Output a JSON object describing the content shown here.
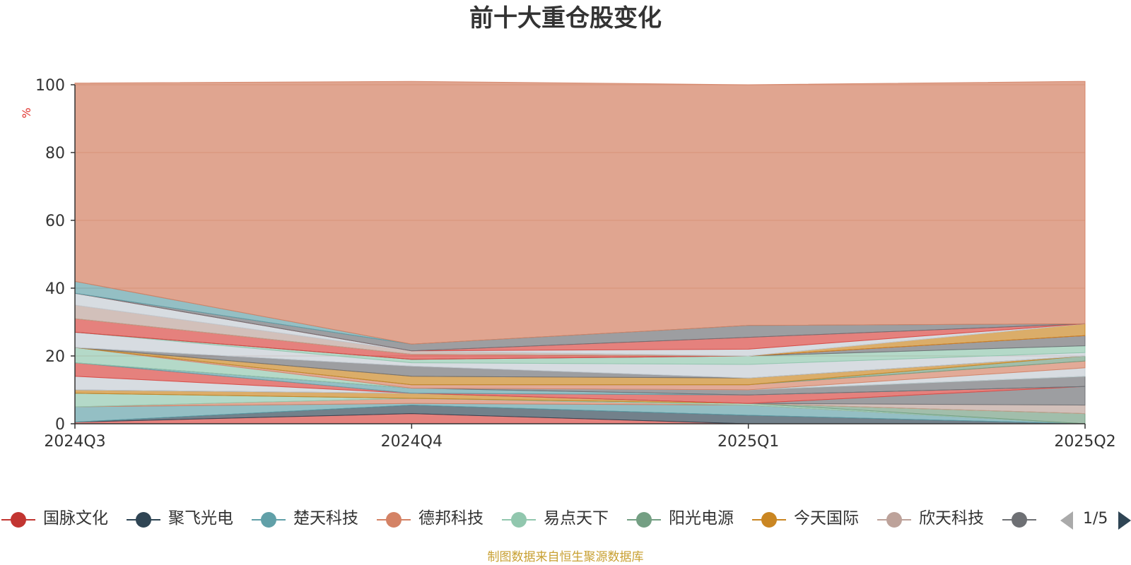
{
  "chart_data": {
    "type": "area",
    "stacked": true,
    "title": "前十大重仓股变化",
    "ylabel": "%",
    "ylim": [
      0,
      100
    ],
    "yticks": [
      0,
      20,
      40,
      60,
      80,
      100
    ],
    "categories": [
      "2024Q3",
      "2024Q4",
      "2025Q1",
      "2025Q2"
    ],
    "grid": true,
    "legend_position": "bottom",
    "series": [
      {
        "name": "国脉文化",
        "color": "#d9453f",
        "values": [
          0.5,
          3,
          0,
          0
        ]
      },
      {
        "name": "聚飞光电",
        "color": "#2f4554",
        "values": [
          0,
          2.5,
          2.5,
          0
        ]
      },
      {
        "name": "楚天科技",
        "color": "#61a0a8",
        "values": [
          4.5,
          0.5,
          3,
          0
        ]
      },
      {
        "name": "德邦科技",
        "color": "#d48265",
        "values": [
          0,
          1.5,
          0,
          0
        ]
      },
      {
        "name": "易点天下",
        "color": "#91c7ae",
        "values": [
          4,
          0,
          0.5,
          0
        ]
      },
      {
        "name": "阳光电源",
        "color": "#749f83",
        "values": [
          0,
          0,
          0,
          3
        ]
      },
      {
        "name": "今天国际",
        "color": "#ca8622",
        "values": [
          1,
          1.5,
          0,
          0
        ]
      },
      {
        "name": "欣天科技",
        "color": "#bda29a",
        "values": [
          0,
          0,
          0,
          2.5
        ]
      },
      {
        "name": "",
        "color": "#6e7074",
        "values": [
          0,
          0,
          0,
          5.5
        ]
      },
      {
        "name": "",
        "color": "#c4ccd3",
        "values": [
          4,
          0,
          0,
          0
        ]
      },
      {
        "name": "",
        "color": "#d9453f",
        "values": [
          4,
          0,
          2.5,
          0
        ]
      },
      {
        "name": "",
        "color": "#61a0a8",
        "values": [
          0,
          1.5,
          0,
          0
        ]
      },
      {
        "name": "",
        "color": "#6e7074",
        "values": [
          0,
          0,
          1.5,
          3
        ]
      },
      {
        "name": "",
        "color": "#91c7ae",
        "values": [
          4.5,
          0,
          0,
          0
        ]
      },
      {
        "name": "",
        "color": "#c4ccd3",
        "values": [
          0,
          0,
          0,
          2.5
        ]
      },
      {
        "name": "",
        "color": "#d48265",
        "values": [
          0,
          1,
          1.5,
          2
        ]
      },
      {
        "name": "",
        "color": "#749f83",
        "values": [
          0,
          0,
          0,
          1.5
        ]
      },
      {
        "name": "",
        "color": "#ca8622",
        "values": [
          0,
          2.5,
          2,
          0
        ]
      },
      {
        "name": "",
        "color": "#6e7074",
        "values": [
          0,
          3,
          0,
          0
        ]
      },
      {
        "name": "",
        "color": "#c4ccd3",
        "values": [
          4.5,
          1,
          4,
          1
        ]
      },
      {
        "name": "",
        "color": "#91c7ae",
        "values": [
          0,
          1,
          2.5,
          2
        ]
      },
      {
        "name": "",
        "color": "#6e7074",
        "values": [
          0,
          0,
          0,
          3
        ]
      },
      {
        "name": "",
        "color": "#d9453f",
        "values": [
          4,
          1.5,
          0,
          0
        ]
      },
      {
        "name": "",
        "color": "#ca8622",
        "values": [
          0,
          0,
          0,
          3.5
        ]
      },
      {
        "name": "",
        "color": "#bda29a",
        "values": [
          4,
          1,
          0,
          0
        ]
      },
      {
        "name": "",
        "color": "#c4ccd3",
        "values": [
          3.5,
          0,
          2,
          0
        ]
      },
      {
        "name": "",
        "color": "#d9453f",
        "values": [
          0,
          0,
          3.5,
          0
        ]
      },
      {
        "name": "",
        "color": "#6e7074",
        "values": [
          0,
          2,
          3.5,
          0
        ]
      },
      {
        "name": "",
        "color": "#61a0a8",
        "values": [
          3.5,
          0,
          0,
          0
        ]
      },
      {
        "name": "",
        "color": "#d48265",
        "values": [
          58.5,
          77.5,
          71,
          71.5
        ]
      }
    ]
  },
  "legend": {
    "items": [
      {
        "label": "国脉文化",
        "color": "#c23531"
      },
      {
        "label": "聚飞光电",
        "color": "#2f4554"
      },
      {
        "label": "楚天科技",
        "color": "#61a0a8"
      },
      {
        "label": "德邦科技",
        "color": "#d48265"
      },
      {
        "label": "易点天下",
        "color": "#91c7ae"
      },
      {
        "label": "阳光电源",
        "color": "#749f83"
      },
      {
        "label": "今天国际",
        "color": "#ca8622"
      },
      {
        "label": "欣天科技",
        "color": "#bda29a"
      },
      {
        "label": "|",
        "color": "#6e7074"
      }
    ],
    "page_text": "1/5"
  },
  "source_note": "制图数据来自恒生聚源数据库"
}
